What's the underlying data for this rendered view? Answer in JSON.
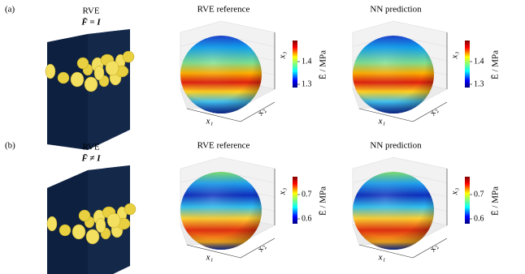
{
  "rows": [
    {
      "label": "(a)",
      "rve": {
        "title": "RVE",
        "condition": "F̄ = I"
      },
      "panels": [
        {
          "title": "RVE reference",
          "axes": {
            "x": "x₁",
            "y": "x₂",
            "z": "x₃"
          },
          "colorbar": {
            "label": "Ē / MPa",
            "ticks": [
              1.4,
              1.3
            ]
          }
        },
        {
          "title": "NN prediction",
          "axes": {
            "x": "x₁",
            "y": "x₂",
            "z": "x₃"
          },
          "colorbar": {
            "label": "Ē / MPa",
            "ticks": [
              1.4,
              1.3
            ]
          }
        }
      ]
    },
    {
      "label": "(b)",
      "rve": {
        "title": "RVE",
        "condition": "F̄ ≠ I"
      },
      "panels": [
        {
          "title": "RVE reference",
          "axes": {
            "x": "x₁",
            "y": "x₂",
            "z": "x₃"
          },
          "colorbar": {
            "label": "Ē / MPa",
            "ticks": [
              0.7,
              0.6
            ]
          }
        },
        {
          "title": "NN prediction",
          "axes": {
            "x": "x₁",
            "y": "x₂",
            "z": "x₃"
          },
          "colorbar": {
            "label": "Ē / MPa",
            "ticks": [
              0.7,
              0.6
            ]
          }
        }
      ]
    }
  ]
}
